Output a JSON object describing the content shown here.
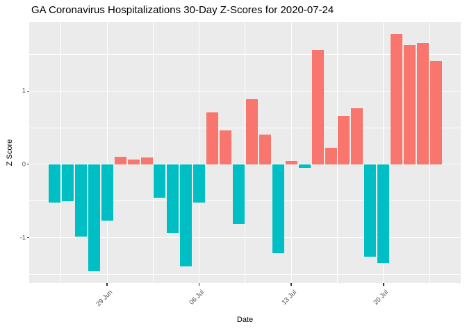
{
  "chart_data": {
    "type": "bar",
    "title": "GA Coronavirus Hospitalizations 30-Day Z-Scores for 2020-07-24",
    "xlabel": "Date",
    "ylabel": "Z Score",
    "categories": [
      "Jun 25",
      "Jun 26",
      "Jun 27",
      "Jun 28",
      "Jun 29",
      "Jun 30",
      "Jul 01",
      "Jul 02",
      "Jul 03",
      "Jul 04",
      "Jul 05",
      "Jul 06",
      "Jul 07",
      "Jul 08",
      "Jul 09",
      "Jul 10",
      "Jul 11",
      "Jul 12",
      "Jul 13",
      "Jul 14",
      "Jul 15",
      "Jul 16",
      "Jul 17",
      "Jul 18",
      "Jul 19",
      "Jul 20",
      "Jul 21",
      "Jul 22",
      "Jul 23",
      "Jul 24"
    ],
    "values": [
      -0.52,
      -0.5,
      -0.99,
      -1.46,
      -0.77,
      0.1,
      0.07,
      0.09,
      -0.46,
      -0.94,
      -1.39,
      -0.52,
      0.71,
      0.46,
      -0.82,
      0.89,
      0.41,
      -1.21,
      0.05,
      -0.05,
      1.56,
      0.23,
      0.66,
      0.77,
      -1.26,
      -1.35,
      1.78,
      1.63,
      1.66,
      1.41
    ],
    "ylim": [
      -1.62,
      1.94
    ],
    "y_major_ticks": [
      -1,
      0,
      1
    ],
    "y_major_tick_labels": [
      "-1",
      "0",
      "1"
    ],
    "y_minor_ticks": [
      -1.5,
      -0.5,
      0.5,
      1.5
    ],
    "x_ticks": [
      {
        "index": 4,
        "label": "29 Jun"
      },
      {
        "index": 11,
        "label": "06 Jul"
      },
      {
        "index": 18,
        "label": "13 Jul"
      },
      {
        "index": 25,
        "label": "20 Jul"
      }
    ],
    "legend_position": "none",
    "grid": "on",
    "colors": {
      "positive": "#F8766D",
      "negative": "#00BFC4",
      "panel_background": "#EBEBEB",
      "gridline": "#FFFFFF",
      "tick_text": "#4D4D4D",
      "tick_mark": "#333333",
      "title_text": "#000000"
    }
  }
}
